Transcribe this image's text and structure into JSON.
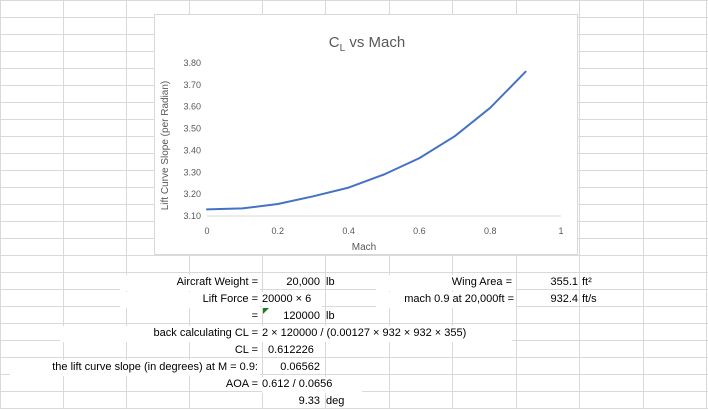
{
  "chart_data": {
    "type": "line",
    "title_main": "C",
    "title_sub": "L",
    "title_rest": " vs Mach",
    "xlabel": "Mach",
    "ylabel": "Lift Curve Slope (per Radian)",
    "xlim": [
      0,
      1
    ],
    "ylim": [
      3.1,
      3.8
    ],
    "xticks": [
      "0",
      "0.2",
      "0.4",
      "0.6",
      "0.8",
      "1"
    ],
    "yticks": [
      "3.10",
      "3.20",
      "3.30",
      "3.40",
      "3.50",
      "3.60",
      "3.70",
      "3.80"
    ],
    "grid": false,
    "legend": "none",
    "line_color": "#4472c4",
    "series": [
      {
        "x": [
          0,
          0.1,
          0.2,
          0.3,
          0.4,
          0.5,
          0.6,
          0.7,
          0.8,
          0.9
        ],
        "values": [
          3.13,
          3.135,
          3.155,
          3.19,
          3.23,
          3.29,
          3.365,
          3.465,
          3.595,
          3.76
        ]
      }
    ]
  },
  "cells": {
    "aircraft_weight_label": "Aircraft Weight =",
    "aircraft_weight_value": "20,000",
    "aircraft_weight_unit": "lb",
    "wing_area_label": "Wing Area =",
    "wing_area_value": "355.1",
    "wing_area_unit": "ft²",
    "lift_force_label": "Lift Force =",
    "lift_force_formula": "20000 × 6",
    "mach_label": "mach 0.9 at 20,000ft =",
    "mach_value": "932.4",
    "mach_unit": "ft/s",
    "equals_sign": "=",
    "lift_result_value": "120000",
    "lift_result_unit": "lb",
    "back_calc_label": "back calculating CL =",
    "back_calc_formula": "2 × 120000 / (0.00127 × 932 × 932 × 355)",
    "cl_label": "CL =",
    "cl_value": "0.612226",
    "slope_label": "the lift curve slope (in degrees) at M = 0.9:",
    "slope_value": "0.06562",
    "aoa_label": "AOA =",
    "aoa_formula": "0.612 / 0.0656",
    "aoa_value": "9.33",
    "aoa_unit": "deg"
  }
}
